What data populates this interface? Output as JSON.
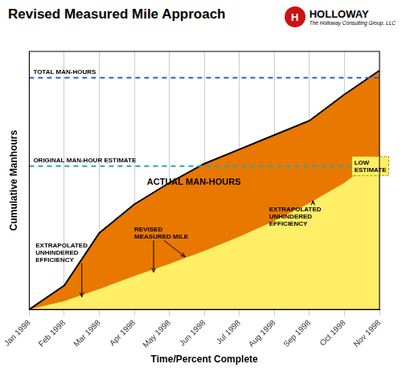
{
  "chart_data": {
    "type": "area",
    "title": "Revised Measured Mile Approach",
    "xlabel": "Time/Percent Complete",
    "ylabel": "Cumulative Manhours",
    "categories": [
      "Jan 1998",
      "Feb 1998",
      "Mar 1998",
      "Apr 1998",
      "May 1998",
      "Jun 1998",
      "Jul 1998",
      "Aug 1998",
      "Sep 1998",
      "Oct 1998",
      "Nov 1998"
    ],
    "series": [
      {
        "color": "#FFEE66",
        "values": [
          0.0,
          0.035,
          0.085,
          0.14,
          0.19,
          0.245,
          0.305,
          0.37,
          0.445,
          0.53,
          0.64
        ]
      },
      {
        "color": "#E87800",
        "values": [
          0.0,
          0.1,
          0.32,
          0.44,
          0.53,
          0.61,
          0.67,
          0.73,
          0.79,
          0.9,
          1.0
        ]
      }
    ],
    "ylim": [
      0,
      1.08
    ],
    "yticks": [],
    "tick_labels": "x",
    "grid": "x",
    "reference_lines": [
      {
        "y": 0.97,
        "color": "#2266DD",
        "line_style": "dashed",
        "label": "TOTAL MAN-HOURS"
      },
      {
        "y": 0.6,
        "color": "#22AAAA",
        "line_style": "dashed",
        "label": "ORIGINAL MAN-HOUR ESTIMATE"
      }
    ],
    "annotations": [
      {
        "text": "ACTUAL MAN-HOURS",
        "x": 4.7,
        "y": 0.52
      },
      {
        "text": "EXTRAPOLATED\nUNHINDERED\nEFFICIENCY",
        "x": 0.18,
        "y": 0.2,
        "arrows": [
          {
            "to": [
              1.5,
              0.052
            ]
          }
        ]
      },
      {
        "text": "REVISED\nMEASURED MILE",
        "x": 3.0,
        "y": 0.295,
        "arrows": [
          {
            "to": [
              3.55,
              0.155
            ]
          },
          {
            "from": [
              3.85,
              0.295
            ],
            "to": [
              4.45,
              0.22
            ]
          }
        ]
      },
      {
        "text": "EXTRAPOLATED\nUNHINDERED\nEFFICIENCY",
        "x": 6.85,
        "y": 0.35,
        "arrows": [
          {
            "to": [
              8.1,
              0.455
            ]
          }
        ]
      },
      {
        "text": "LOW\nESTIMATE",
        "x": 9.28,
        "y": 0.6,
        "box": true,
        "color": "#FFEE66"
      }
    ],
    "logo": {
      "mark": "H",
      "text": "HOLLOWAY",
      "subtitle": "The Holloway Consulting Group, LLC",
      "color": "#CC1111"
    }
  }
}
